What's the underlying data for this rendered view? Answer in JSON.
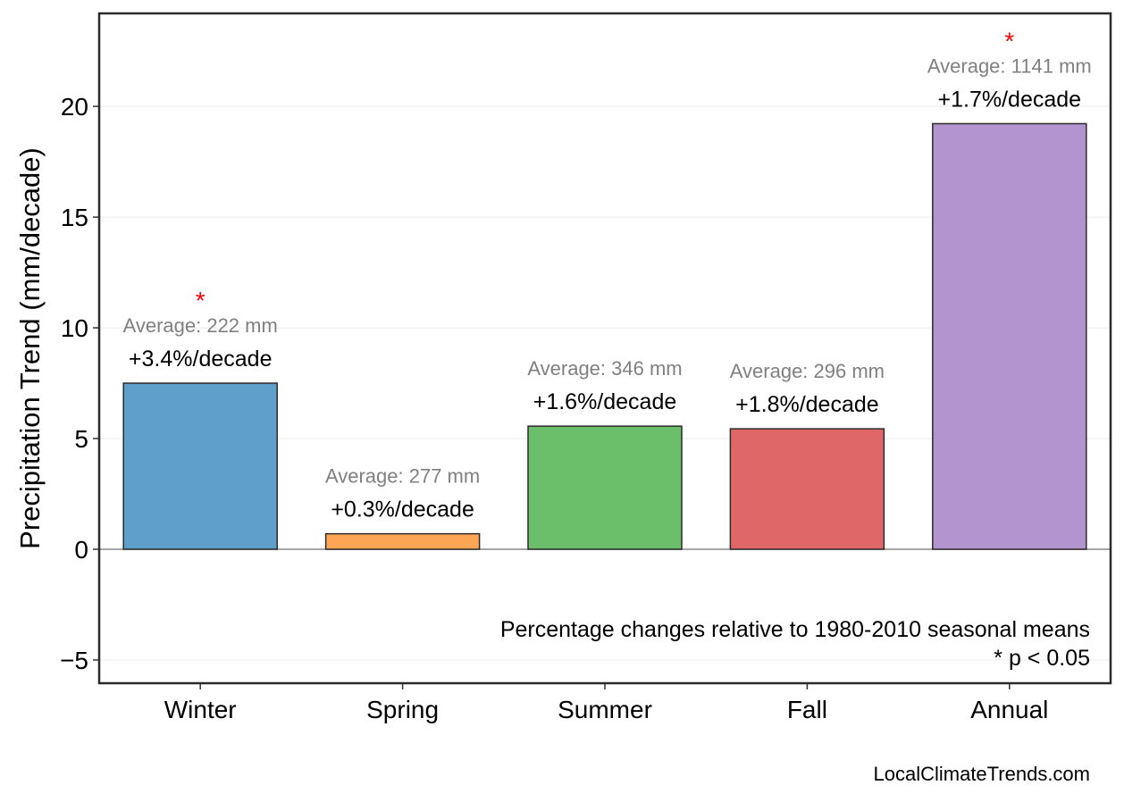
{
  "chart_data": {
    "type": "bar",
    "categories": [
      "Winter",
      "Spring",
      "Summer",
      "Fall",
      "Annual"
    ],
    "values": [
      7.5,
      0.7,
      5.56,
      5.44,
      19.22
    ],
    "colors": [
      "#5f9fcb",
      "#fca554",
      "#6bbe6a",
      "#e06767",
      "#b394cf"
    ],
    "pct_labels": [
      "+3.4%/decade",
      "+0.3%/decade",
      "+1.6%/decade",
      "+1.8%/decade",
      "+1.7%/decade"
    ],
    "avg_labels": [
      "Average: 222 mm",
      "Average: 277 mm",
      "Average: 346 mm",
      "Average: 296 mm",
      "Average: 1141 mm"
    ],
    "significant": [
      true,
      false,
      false,
      false,
      true
    ],
    "sig_marker": "*",
    "sig_color": "#ff0000",
    "ylabel": "Precipitation Trend (mm/decade)",
    "xlabel": "",
    "ylim": [
      -6.05,
      24.2
    ],
    "yticks": [
      -5,
      0,
      5,
      10,
      15,
      20
    ],
    "ytick_labels": [
      "−5",
      "0",
      "5",
      "10",
      "15",
      "20"
    ],
    "grid": true,
    "note_line1": "Percentage changes relative to 1980-2010 seasonal means",
    "note_line2": "* p < 0.05",
    "credit": "LocalClimateTrends.com"
  }
}
